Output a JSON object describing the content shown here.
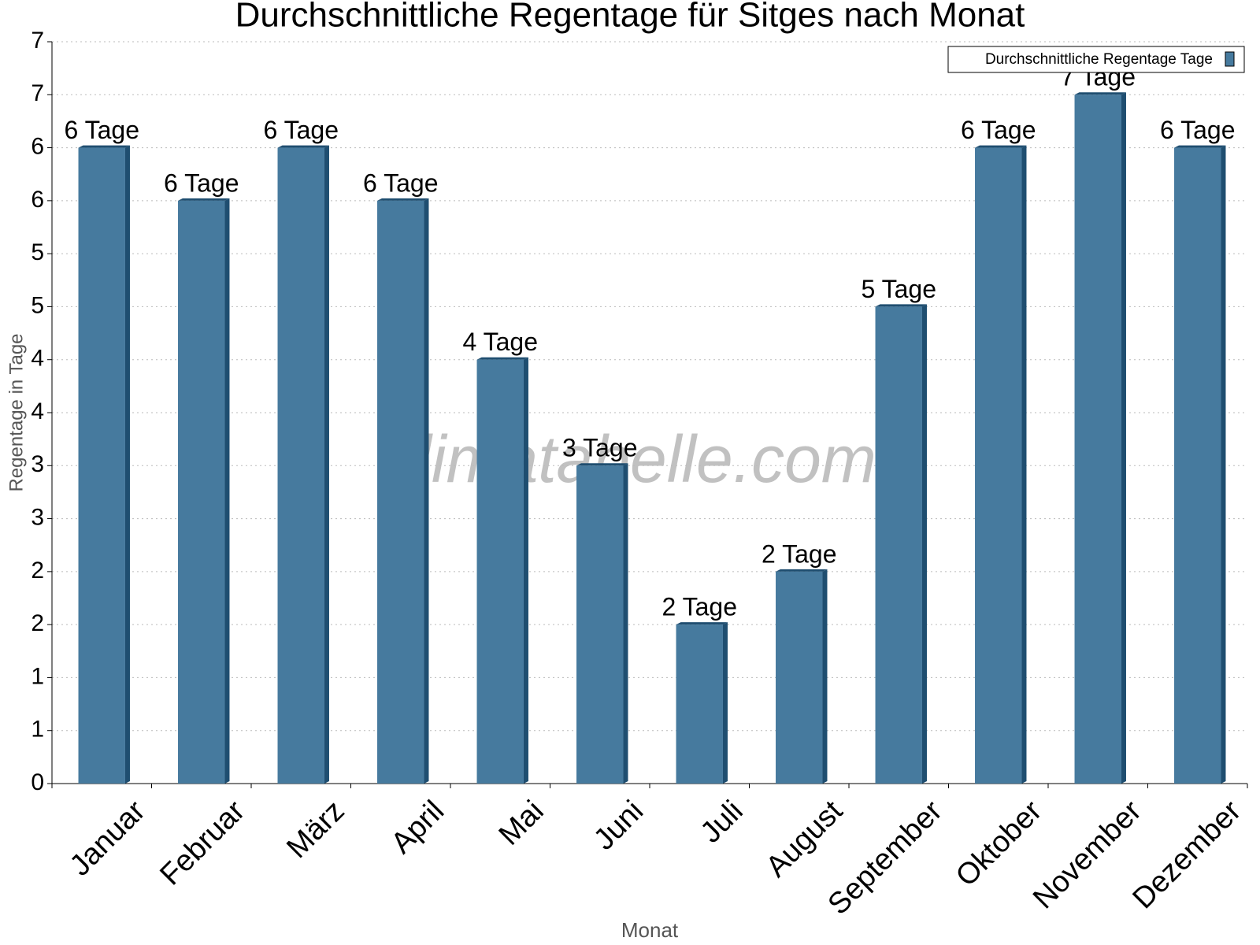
{
  "chart_data": {
    "type": "bar",
    "title": "Durchschnittliche Regentage für Sitges nach Monat",
    "x_label": "Monat",
    "y_label": "Regentage in Tage",
    "watermark": "klimatabelle.com",
    "categories": [
      "Januar",
      "Februar",
      "März",
      "April",
      "Mai",
      "Juni",
      "Juli",
      "August",
      "September",
      "Oktober",
      "November",
      "Dezember"
    ],
    "series": [
      {
        "name": "Durchschnittliche Regentage Tage",
        "color": "#467a9e",
        "values": [
          6,
          5.5,
          6,
          5.5,
          4,
          3,
          1.5,
          2,
          4.5,
          6,
          6.5,
          6
        ],
        "value_labels": [
          "6 Tage",
          "6 Tage",
          "6 Tage",
          "6 Tage",
          "4 Tage",
          "3 Tage",
          "2 Tage",
          "2 Tage",
          "5 Tage",
          "6 Tage",
          "7 Tage",
          "6 Tage"
        ]
      }
    ],
    "ylim": [
      0,
      7
    ],
    "yticks": [
      0,
      {
        "value": 0.5,
        "label": "1"
      },
      1,
      {
        "value": 1.5,
        "label": "2"
      },
      2,
      {
        "value": 2.5,
        "label": "3"
      },
      3,
      {
        "value": 3.5,
        "label": "4"
      },
      4,
      {
        "value": 4.5,
        "label": "5"
      },
      5,
      {
        "value": 5.5,
        "label": "6"
      },
      6,
      {
        "value": 6.5,
        "label": "7"
      },
      7
    ],
    "grid": true,
    "legend": "top-right"
  }
}
